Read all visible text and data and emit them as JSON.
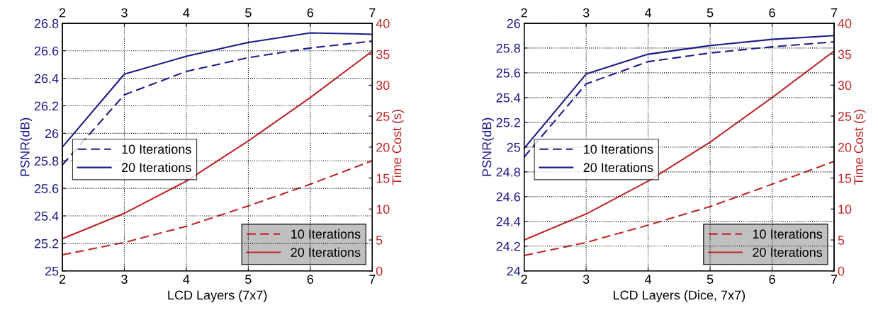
{
  "chart_data": [
    {
      "type": "line",
      "xlabel": "LCD Layers (7x7)",
      "ylabel": "PSNR(dB)",
      "y2label": "Time Cost (s)",
      "x": [
        2,
        3,
        4,
        5,
        6,
        7
      ],
      "xlim": [
        2,
        7
      ],
      "xticks": [
        2,
        3,
        4,
        5,
        6,
        7
      ],
      "x2lim": [
        2,
        7
      ],
      "x2ticks": [
        2,
        3,
        4,
        5,
        6,
        7
      ],
      "ylim": [
        25,
        26.8
      ],
      "yticks": [
        25,
        {
          "value": 25.2,
          "label": "25.2"
        },
        {
          "value": 25.4,
          "label": "25.4"
        },
        {
          "value": 25.6,
          "label": "25.6"
        },
        {
          "value": 25.8,
          "label": "25.8"
        },
        26,
        {
          "value": 26.2,
          "label": "26.2"
        },
        {
          "value": 26.4,
          "label": "26.4"
        },
        {
          "value": 26.6,
          "label": "26.6"
        },
        {
          "value": 26.8,
          "label": "26.8"
        }
      ],
      "y2lim": [
        0,
        40
      ],
      "y2ticks": [
        0,
        5,
        10,
        15,
        20,
        25,
        30,
        35,
        40
      ],
      "grid": true,
      "legend": "center left",
      "series": [
        {
          "name": "10 Iterations",
          "color": "#1c1c8a",
          "line_style": "dashed",
          "values": [
            25.77,
            26.28,
            26.45,
            26.55,
            26.62,
            26.67
          ]
        },
        {
          "name": "20 Iterations",
          "color": "#1c1c8a",
          "line_style": "solid",
          "values": [
            25.9,
            26.43,
            26.56,
            26.66,
            26.73,
            26.72
          ]
        },
        {
          "name": "10 Iterations",
          "color": "#c0282a",
          "line_style": "dashed",
          "axis": "y2",
          "values": [
            2.6,
            4.6,
            7.2,
            10.5,
            14,
            17.8
          ]
        },
        {
          "name": "20 Iterations",
          "color": "#c0282a",
          "line_style": "solid",
          "axis": "y2",
          "values": [
            5.2,
            9.3,
            14.5,
            21,
            28,
            35.5
          ]
        }
      ]
    },
    {
      "type": "line",
      "xlabel": "LCD Layers (Dice, 7x7)",
      "ylabel": "PSNR(dB)",
      "y2label": "Time Cost (s)",
      "x": [
        2,
        3,
        4,
        5,
        6,
        7
      ],
      "xlim": [
        2,
        7
      ],
      "xticks": [
        2,
        3,
        4,
        5,
        6,
        7
      ],
      "x2lim": [
        2,
        7
      ],
      "x2ticks": [
        2,
        3,
        4,
        5,
        6,
        7
      ],
      "ylim": [
        24,
        26
      ],
      "yticks": [
        24,
        {
          "value": 24.2,
          "label": "24.2"
        },
        {
          "value": 24.4,
          "label": "24.4"
        },
        {
          "value": 24.6,
          "label": "24.6"
        },
        {
          "value": 24.8,
          "label": "24.8"
        },
        25,
        {
          "value": 25.2,
          "label": "25.2"
        },
        {
          "value": 25.4,
          "label": "25.4"
        },
        {
          "value": 25.6,
          "label": "25.6"
        },
        {
          "value": 25.8,
          "label": "25.8"
        },
        26
      ],
      "y2lim": [
        0,
        40
      ],
      "y2ticks": [
        0,
        5,
        10,
        15,
        20,
        25,
        30,
        35,
        40
      ],
      "grid": true,
      "legend": "center left",
      "series": [
        {
          "name": "10 Iterations",
          "color": "#1c1c8a",
          "line_style": "dashed",
          "values": [
            24.92,
            25.51,
            25.69,
            25.76,
            25.81,
            25.85
          ]
        },
        {
          "name": "20 Iterations",
          "color": "#1c1c8a",
          "line_style": "solid",
          "values": [
            24.99,
            25.59,
            25.75,
            25.82,
            25.87,
            25.9
          ]
        },
        {
          "name": "10 Iterations",
          "color": "#c0282a",
          "line_style": "dashed",
          "axis": "y2",
          "values": [
            2.5,
            4.6,
            7.4,
            10.4,
            14,
            17.7
          ]
        },
        {
          "name": "20 Iterations",
          "color": "#c0282a",
          "line_style": "solid",
          "axis": "y2",
          "values": [
            5,
            9.2,
            14.5,
            20.8,
            28,
            35.5
          ]
        }
      ]
    }
  ]
}
